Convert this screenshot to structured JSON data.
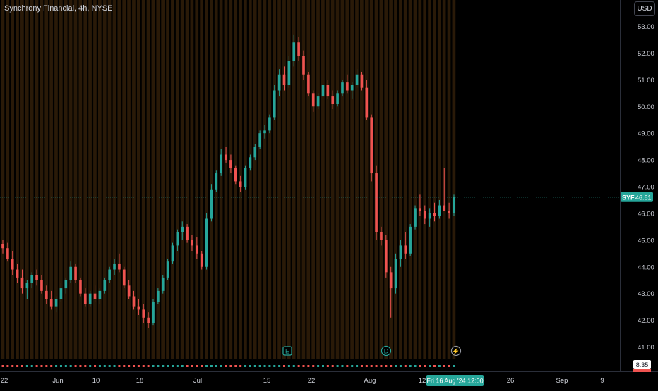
{
  "header": {
    "title": "Synchrony Financial, 4h, NYSE",
    "currency_button": "USD"
  },
  "colors": {
    "background": "#000000",
    "session_stripe": "#2a1a08",
    "up": "#26a69a",
    "down": "#ef5350",
    "text": "#d1d4dc",
    "price_line": "#26a69a",
    "crosshair": "#26a69a",
    "event_icon": "#26a69a"
  },
  "chart_data": {
    "type": "candlestick",
    "title": "Synchrony Financial, 4h, NYSE",
    "ylim": [
      40.6,
      53.4
    ],
    "y_ticks": [
      41.0,
      42.0,
      43.0,
      44.0,
      45.0,
      46.0,
      47.0,
      48.0,
      49.0,
      50.0,
      51.0,
      52.0,
      53.0
    ],
    "x_ticks": [
      "22",
      "Jun",
      "10",
      "18",
      "Jul",
      "15",
      "22",
      "Aug",
      "12",
      "26",
      "Sep",
      "9"
    ],
    "last_price": {
      "symbol": "SYF",
      "value": "46.61",
      "price": 46.61
    },
    "crosshair_label": "Fri 16 Aug '24   12:00",
    "events": [
      {
        "label": "E",
        "type": "earnings"
      },
      {
        "label": "D",
        "type": "dividend"
      },
      {
        "label": "⚡",
        "type": "split"
      }
    ],
    "indicator": {
      "value": "8.35"
    },
    "candles": [
      [
        44.85,
        45.0,
        44.5,
        44.7
      ],
      [
        44.7,
        44.9,
        44.2,
        44.3
      ],
      [
        44.3,
        44.6,
        43.7,
        43.9
      ],
      [
        43.9,
        44.1,
        43.4,
        43.6
      ],
      [
        43.6,
        43.9,
        43.0,
        43.2
      ],
      [
        43.2,
        43.5,
        42.8,
        43.4
      ],
      [
        43.4,
        43.8,
        43.2,
        43.7
      ],
      [
        43.7,
        43.9,
        43.3,
        43.5
      ],
      [
        43.5,
        43.7,
        43.0,
        43.1
      ],
      [
        43.1,
        43.3,
        42.6,
        42.8
      ],
      [
        42.8,
        43.1,
        42.4,
        42.5
      ],
      [
        42.5,
        42.9,
        42.3,
        42.8
      ],
      [
        42.8,
        43.4,
        42.7,
        43.2
      ],
      [
        43.2,
        43.6,
        43.0,
        43.5
      ],
      [
        43.5,
        44.2,
        43.4,
        44.0
      ],
      [
        44.0,
        44.1,
        43.4,
        43.5
      ],
      [
        43.5,
        43.6,
        42.9,
        43.0
      ],
      [
        43.0,
        43.2,
        42.5,
        42.6
      ],
      [
        42.6,
        43.1,
        42.5,
        43.0
      ],
      [
        43.0,
        43.3,
        42.7,
        42.8
      ],
      [
        42.8,
        43.2,
        42.6,
        43.1
      ],
      [
        43.1,
        43.6,
        43.0,
        43.5
      ],
      [
        43.5,
        44.0,
        43.4,
        43.9
      ],
      [
        43.9,
        44.3,
        43.7,
        44.1
      ],
      [
        44.1,
        44.5,
        43.8,
        43.9
      ],
      [
        43.9,
        44.0,
        43.2,
        43.3
      ],
      [
        43.3,
        43.5,
        42.8,
        42.9
      ],
      [
        42.9,
        43.1,
        42.4,
        42.5
      ],
      [
        42.5,
        42.8,
        42.2,
        42.4
      ],
      [
        42.4,
        42.6,
        41.9,
        42.1
      ],
      [
        42.1,
        42.3,
        41.7,
        41.9
      ],
      [
        41.9,
        42.8,
        41.8,
        42.7
      ],
      [
        42.7,
        43.2,
        42.6,
        43.1
      ],
      [
        43.1,
        43.7,
        43.0,
        43.6
      ],
      [
        43.6,
        44.3,
        43.5,
        44.2
      ],
      [
        44.2,
        44.9,
        44.1,
        44.8
      ],
      [
        44.8,
        45.4,
        44.6,
        45.3
      ],
      [
        45.3,
        45.7,
        45.0,
        45.5
      ],
      [
        45.5,
        45.6,
        44.9,
        45.0
      ],
      [
        45.0,
        45.2,
        44.6,
        44.8
      ],
      [
        44.8,
        45.1,
        44.3,
        44.5
      ],
      [
        44.5,
        44.6,
        43.9,
        44.0
      ],
      [
        44.0,
        46.0,
        43.9,
        45.8
      ],
      [
        45.8,
        47.1,
        45.7,
        46.9
      ],
      [
        46.9,
        47.6,
        46.8,
        47.5
      ],
      [
        47.5,
        48.4,
        47.4,
        48.2
      ],
      [
        48.2,
        48.5,
        47.9,
        48.0
      ],
      [
        48.0,
        48.2,
        47.5,
        47.7
      ],
      [
        47.7,
        47.8,
        47.1,
        47.2
      ],
      [
        47.2,
        47.4,
        46.8,
        47.0
      ],
      [
        47.0,
        47.8,
        46.9,
        47.7
      ],
      [
        47.7,
        48.2,
        47.6,
        48.1
      ],
      [
        48.1,
        48.6,
        48.0,
        48.5
      ],
      [
        48.5,
        49.1,
        48.4,
        49.0
      ],
      [
        49.0,
        49.3,
        48.8,
        49.1
      ],
      [
        49.1,
        49.7,
        49.0,
        49.6
      ],
      [
        49.6,
        50.8,
        49.5,
        50.6
      ],
      [
        50.6,
        51.4,
        50.4,
        51.2
      ],
      [
        51.2,
        51.5,
        50.6,
        50.8
      ],
      [
        50.8,
        51.9,
        50.7,
        51.7
      ],
      [
        51.7,
        52.7,
        51.5,
        52.4
      ],
      [
        52.4,
        52.6,
        51.7,
        51.9
      ],
      [
        51.9,
        52.1,
        51.0,
        51.2
      ],
      [
        51.2,
        51.3,
        50.4,
        50.5
      ],
      [
        50.5,
        50.6,
        49.8,
        50.0
      ],
      [
        50.0,
        50.5,
        49.9,
        50.4
      ],
      [
        50.4,
        50.9,
        50.3,
        50.8
      ],
      [
        50.8,
        51.0,
        50.3,
        50.4
      ],
      [
        50.4,
        50.6,
        49.9,
        50.1
      ],
      [
        50.1,
        50.6,
        50.0,
        50.5
      ],
      [
        50.5,
        51.0,
        50.4,
        50.9
      ],
      [
        50.9,
        51.2,
        50.5,
        50.6
      ],
      [
        50.6,
        50.9,
        50.3,
        50.8
      ],
      [
        50.8,
        51.4,
        50.7,
        51.2
      ],
      [
        51.2,
        51.3,
        50.6,
        50.7
      ],
      [
        50.7,
        51.0,
        49.5,
        49.6
      ],
      [
        49.6,
        49.7,
        47.2,
        47.5
      ],
      [
        47.5,
        47.8,
        45.0,
        45.3
      ],
      [
        45.3,
        45.5,
        44.8,
        45.0
      ],
      [
        45.0,
        45.2,
        43.6,
        43.8
      ],
      [
        43.8,
        44.0,
        42.1,
        43.2
      ],
      [
        43.2,
        44.5,
        43.0,
        44.3
      ],
      [
        44.3,
        45.0,
        44.0,
        44.8
      ],
      [
        44.8,
        45.3,
        44.3,
        44.5
      ],
      [
        44.5,
        45.6,
        44.4,
        45.5
      ],
      [
        45.5,
        46.3,
        45.4,
        46.2
      ],
      [
        46.2,
        46.7,
        45.9,
        46.1
      ],
      [
        46.1,
        46.3,
        45.6,
        45.8
      ],
      [
        45.8,
        46.2,
        45.5,
        46.0
      ],
      [
        46.0,
        46.4,
        45.7,
        45.9
      ],
      [
        45.9,
        46.5,
        45.8,
        46.3
      ],
      [
        46.3,
        47.7,
        46.2,
        46.1
      ],
      [
        46.1,
        46.4,
        45.8,
        46.0
      ],
      [
        46.0,
        46.7,
        45.9,
        46.61
      ]
    ]
  }
}
